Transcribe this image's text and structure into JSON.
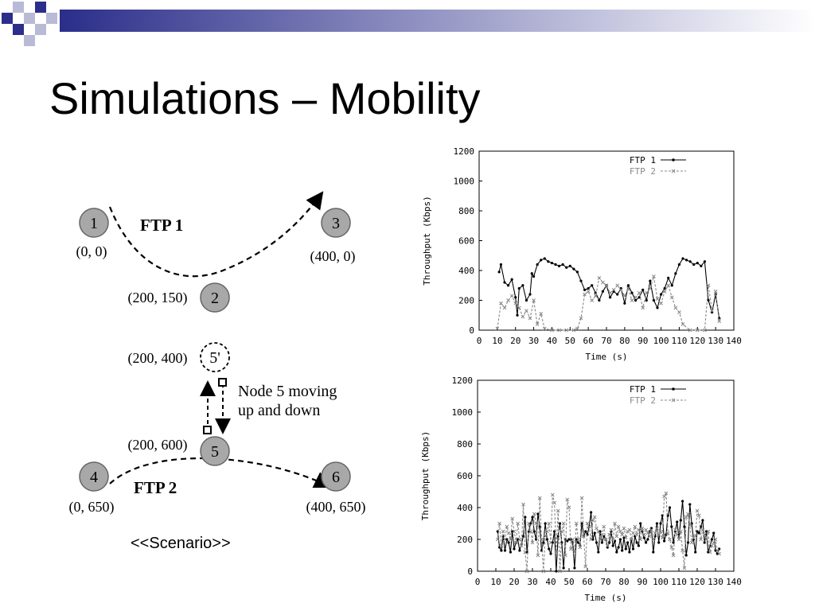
{
  "slide": {
    "title": "Simulations – Mobility",
    "caption": "<<Scenario>>"
  },
  "scenario": {
    "nodes": [
      {
        "id": "1",
        "coord": "(0, 0)"
      },
      {
        "id": "2",
        "coord": "(200, 150)"
      },
      {
        "id": "3",
        "coord": "(400, 0)"
      },
      {
        "id": "4",
        "coord": "(0, 650)"
      },
      {
        "id": "5",
        "coord": "(200, 600)"
      },
      {
        "id": "6",
        "coord": "(400, 650)"
      },
      {
        "id": "5'",
        "coord": "(200, 400)"
      }
    ],
    "flow_labels": [
      "FTP 1",
      "FTP 2"
    ],
    "mobility_label_line1": "Node 5 moving",
    "mobility_label_line2": "up and down"
  },
  "colors": {
    "node_fill": "#a8a8a8",
    "ftp1": "#000000",
    "ftp2": "#888888",
    "deco_dark": "#2b2e8a",
    "deco_light": "#b8bad6"
  },
  "chart_data": [
    {
      "type": "line",
      "xlabel": "Time (s)",
      "ylabel": "Throughput (Kbps)",
      "xlim": [
        0,
        140
      ],
      "ylim": [
        0,
        1200
      ],
      "xticks": [
        0,
        10,
        20,
        30,
        40,
        50,
        60,
        70,
        80,
        90,
        100,
        110,
        120,
        130,
        140
      ],
      "yticks": [
        0,
        200,
        400,
        600,
        800,
        1000,
        1200
      ],
      "legend": "top-right",
      "series": [
        {
          "name": "FTP 1",
          "x": [
            11,
            12,
            14,
            16,
            18,
            20,
            21,
            22,
            24,
            26,
            28,
            29,
            30,
            32,
            34,
            36,
            38,
            40,
            42,
            44,
            46,
            48,
            50,
            52,
            54,
            56,
            58,
            60,
            62,
            64,
            66,
            68,
            70,
            72,
            74,
            76,
            78,
            80,
            82,
            84,
            86,
            88,
            90,
            92,
            94,
            96,
            98,
            100,
            102,
            104,
            106,
            108,
            110,
            112,
            114,
            116,
            118,
            120,
            122,
            124,
            126,
            128,
            130,
            132
          ],
          "y": [
            390,
            440,
            320,
            300,
            340,
            220,
            100,
            280,
            300,
            200,
            240,
            380,
            360,
            440,
            470,
            480,
            460,
            450,
            440,
            430,
            440,
            420,
            430,
            410,
            390,
            330,
            270,
            280,
            300,
            250,
            200,
            260,
            300,
            220,
            260,
            240,
            280,
            180,
            300,
            250,
            200,
            220,
            270,
            200,
            330,
            200,
            150,
            240,
            280,
            350,
            300,
            380,
            440,
            480,
            470,
            460,
            440,
            450,
            430,
            460,
            200,
            120,
            240,
            80
          ]
        },
        {
          "name": "FTP 2",
          "x": [
            10,
            12,
            14,
            16,
            18,
            20,
            22,
            24,
            26,
            28,
            30,
            32,
            34,
            36,
            40,
            44,
            48,
            52,
            54,
            56,
            58,
            60,
            62,
            64,
            66,
            68,
            70,
            72,
            74,
            76,
            78,
            80,
            82,
            84,
            86,
            88,
            90,
            92,
            94,
            96,
            98,
            100,
            102,
            104,
            106,
            108,
            110,
            112,
            116,
            120,
            124,
            126,
            128,
            130,
            132
          ],
          "y": [
            10,
            180,
            150,
            200,
            230,
            180,
            150,
            90,
            130,
            80,
            200,
            40,
            110,
            10,
            0,
            0,
            0,
            0,
            10,
            80,
            240,
            260,
            200,
            230,
            350,
            320,
            300,
            250,
            270,
            300,
            270,
            230,
            280,
            200,
            220,
            250,
            150,
            250,
            280,
            360,
            210,
            180,
            260,
            300,
            220,
            150,
            120,
            40,
            0,
            0,
            0,
            300,
            130,
            260,
            60
          ]
        }
      ]
    },
    {
      "type": "line",
      "xlabel": "Time (s)",
      "ylabel": "Throughput (Kbps)",
      "xlim": [
        0,
        140
      ],
      "ylim": [
        0,
        1200
      ],
      "xticks": [
        0,
        10,
        20,
        30,
        40,
        50,
        60,
        70,
        80,
        90,
        100,
        110,
        120,
        130,
        140
      ],
      "yticks": [
        0,
        200,
        400,
        600,
        800,
        1000,
        1200
      ],
      "legend": "top-right",
      "series": [
        {
          "name": "FTP 1",
          "x": [
            11,
            12,
            13,
            14,
            15,
            16,
            17,
            18,
            19,
            20,
            21,
            22,
            23,
            24,
            25,
            26,
            27,
            28,
            29,
            30,
            31,
            32,
            33,
            34,
            35,
            36,
            37,
            38,
            39,
            40,
            41,
            42,
            43,
            44,
            45,
            46,
            47,
            48,
            49,
            50,
            51,
            52,
            53,
            54,
            55,
            56,
            57,
            58,
            59,
            60,
            61,
            62,
            63,
            64,
            65,
            66,
            67,
            68,
            69,
            70,
            71,
            72,
            73,
            74,
            75,
            76,
            77,
            78,
            79,
            80,
            81,
            82,
            83,
            84,
            85,
            86,
            87,
            88,
            89,
            90,
            91,
            92,
            93,
            94,
            95,
            96,
            97,
            98,
            99,
            100,
            101,
            102,
            103,
            104,
            105,
            106,
            107,
            108,
            109,
            110,
            111,
            112,
            113,
            114,
            115,
            116,
            117,
            118,
            119,
            120,
            121,
            122,
            123,
            124,
            125,
            126,
            127,
            128,
            129,
            130,
            131,
            132
          ],
          "y": [
            250,
            150,
            130,
            220,
            130,
            200,
            180,
            120,
            250,
            140,
            180,
            200,
            130,
            170,
            220,
            340,
            120,
            250,
            300,
            340,
            250,
            200,
            360,
            280,
            130,
            180,
            300,
            200,
            140,
            110,
            180,
            250,
            0,
            220,
            300,
            180,
            20,
            200,
            190,
            200,
            200,
            180,
            20,
            200,
            180,
            160,
            300,
            220,
            250,
            230,
            280,
            370,
            200,
            240,
            180,
            120,
            250,
            180,
            220,
            200,
            150,
            180,
            250,
            160,
            190,
            120,
            150,
            200,
            130,
            210,
            140,
            180,
            120,
            200,
            140,
            220,
            180,
            160,
            300,
            250,
            210,
            180,
            200,
            250,
            270,
            120,
            220,
            300,
            180,
            300,
            350,
            190,
            230,
            350,
            400,
            280,
            180,
            250,
            310,
            210,
            320,
            440,
            280,
            100,
            180,
            420,
            300,
            200,
            120,
            250,
            240,
            280,
            320,
            180,
            250,
            120,
            160,
            200,
            240,
            130,
            110,
            140
          ]
        },
        {
          "name": "FTP 2",
          "x": [
            11,
            12,
            13,
            14,
            15,
            16,
            17,
            18,
            19,
            20,
            21,
            22,
            23,
            24,
            25,
            26,
            27,
            28,
            29,
            30,
            31,
            32,
            33,
            34,
            35,
            36,
            37,
            38,
            39,
            40,
            41,
            42,
            43,
            44,
            45,
            46,
            47,
            48,
            49,
            50,
            51,
            52,
            53,
            54,
            55,
            56,
            57,
            58,
            59,
            60,
            61,
            62,
            63,
            64,
            65,
            66,
            67,
            68,
            69,
            70,
            71,
            72,
            73,
            74,
            75,
            76,
            77,
            78,
            79,
            80,
            81,
            82,
            83,
            84,
            85,
            86,
            87,
            88,
            89,
            90,
            91,
            92,
            93,
            94,
            95,
            96,
            97,
            98,
            99,
            100,
            101,
            102,
            103,
            104,
            105,
            106,
            107,
            108,
            109,
            110,
            111,
            112,
            113,
            114,
            115,
            116,
            117,
            118,
            119,
            120,
            121,
            122,
            123,
            124,
            125,
            126,
            127,
            128,
            129,
            130,
            131,
            132
          ],
          "y": [
            200,
            300,
            160,
            250,
            200,
            280,
            240,
            200,
            330,
            250,
            180,
            300,
            200,
            160,
            420,
            120,
            0,
            300,
            250,
            180,
            360,
            300,
            100,
            460,
            200,
            0,
            220,
            250,
            300,
            180,
            480,
            430,
            120,
            380,
            0,
            250,
            300,
            100,
            450,
            400,
            140,
            200,
            120,
            300,
            200,
            150,
            460,
            220,
            30,
            300,
            280,
            200,
            320,
            340,
            270,
            250,
            200,
            230,
            280,
            200,
            160,
            230,
            260,
            200,
            300,
            220,
            280,
            250,
            230,
            270,
            210,
            250,
            260,
            200,
            240,
            280,
            230,
            260,
            200,
            270,
            230,
            260,
            240,
            220,
            260,
            200,
            240,
            270,
            230,
            250,
            210,
            470,
            490,
            240,
            200,
            150,
            100,
            260,
            230,
            200,
            250,
            130,
            20,
            340,
            360,
            290,
            180,
            210,
            220,
            380,
            350,
            200,
            260,
            230,
            200,
            250,
            120,
            160,
            180,
            200,
            130,
            110
          ]
        }
      ]
    }
  ]
}
